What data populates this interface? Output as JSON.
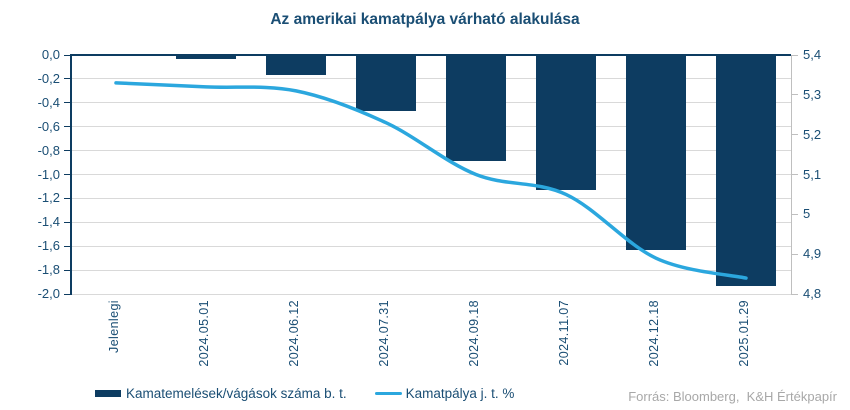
{
  "title": "Az amerikai kamatpálya várható alakulása",
  "source_note": "Forrás: Bloomberg,  K&H Értékpapír",
  "colors": {
    "bar": "#0d3c61",
    "line": "#2ba7de",
    "grid": "#d9d9d9",
    "text": "#1a4e74",
    "right_axis": "#bfbfbf",
    "source_text": "#a8a8a8"
  },
  "chart_data": {
    "type": "combo",
    "title": "Az amerikai kamatpálya várható alakulása",
    "categories": [
      "Jelenlegi",
      "2024.05.01",
      "2024.06.12",
      "2024.07.31",
      "2024.09.18",
      "2024.11.07",
      "2024.12.18",
      "2025.01.29"
    ],
    "series": [
      {
        "name": "Kamatemelések/vágások száma b. t.",
        "type": "bar",
        "axis": "left",
        "color": "#0d3c61",
        "values": [
          0,
          -0.03,
          -0.17,
          -0.47,
          -0.89,
          -1.13,
          -1.63,
          -1.93
        ]
      },
      {
        "name": "Kamatpálya j. t. %",
        "type": "line",
        "axis": "right",
        "color": "#2ba7de",
        "values": [
          5.33,
          5.32,
          5.31,
          5.23,
          5.1,
          5.05,
          4.89,
          4.84
        ]
      }
    ],
    "left_axis": {
      "min": -2.0,
      "max": 0.0,
      "step": 0.2,
      "tick_labels": [
        "0,0",
        "-0,2",
        "-0,4",
        "-0,6",
        "-0,8",
        "-1,0",
        "-1,2",
        "-1,4",
        "-1,6",
        "-1,8",
        "-2,0"
      ]
    },
    "right_axis": {
      "min": 4.8,
      "max": 5.4,
      "step": 0.1,
      "tick_labels": [
        "5,4",
        "5,3",
        "5,2",
        "5,1",
        "5",
        "4,9",
        "4,8"
      ]
    },
    "grid": true,
    "legend_position": "bottom",
    "x_labels_rotated": true
  }
}
